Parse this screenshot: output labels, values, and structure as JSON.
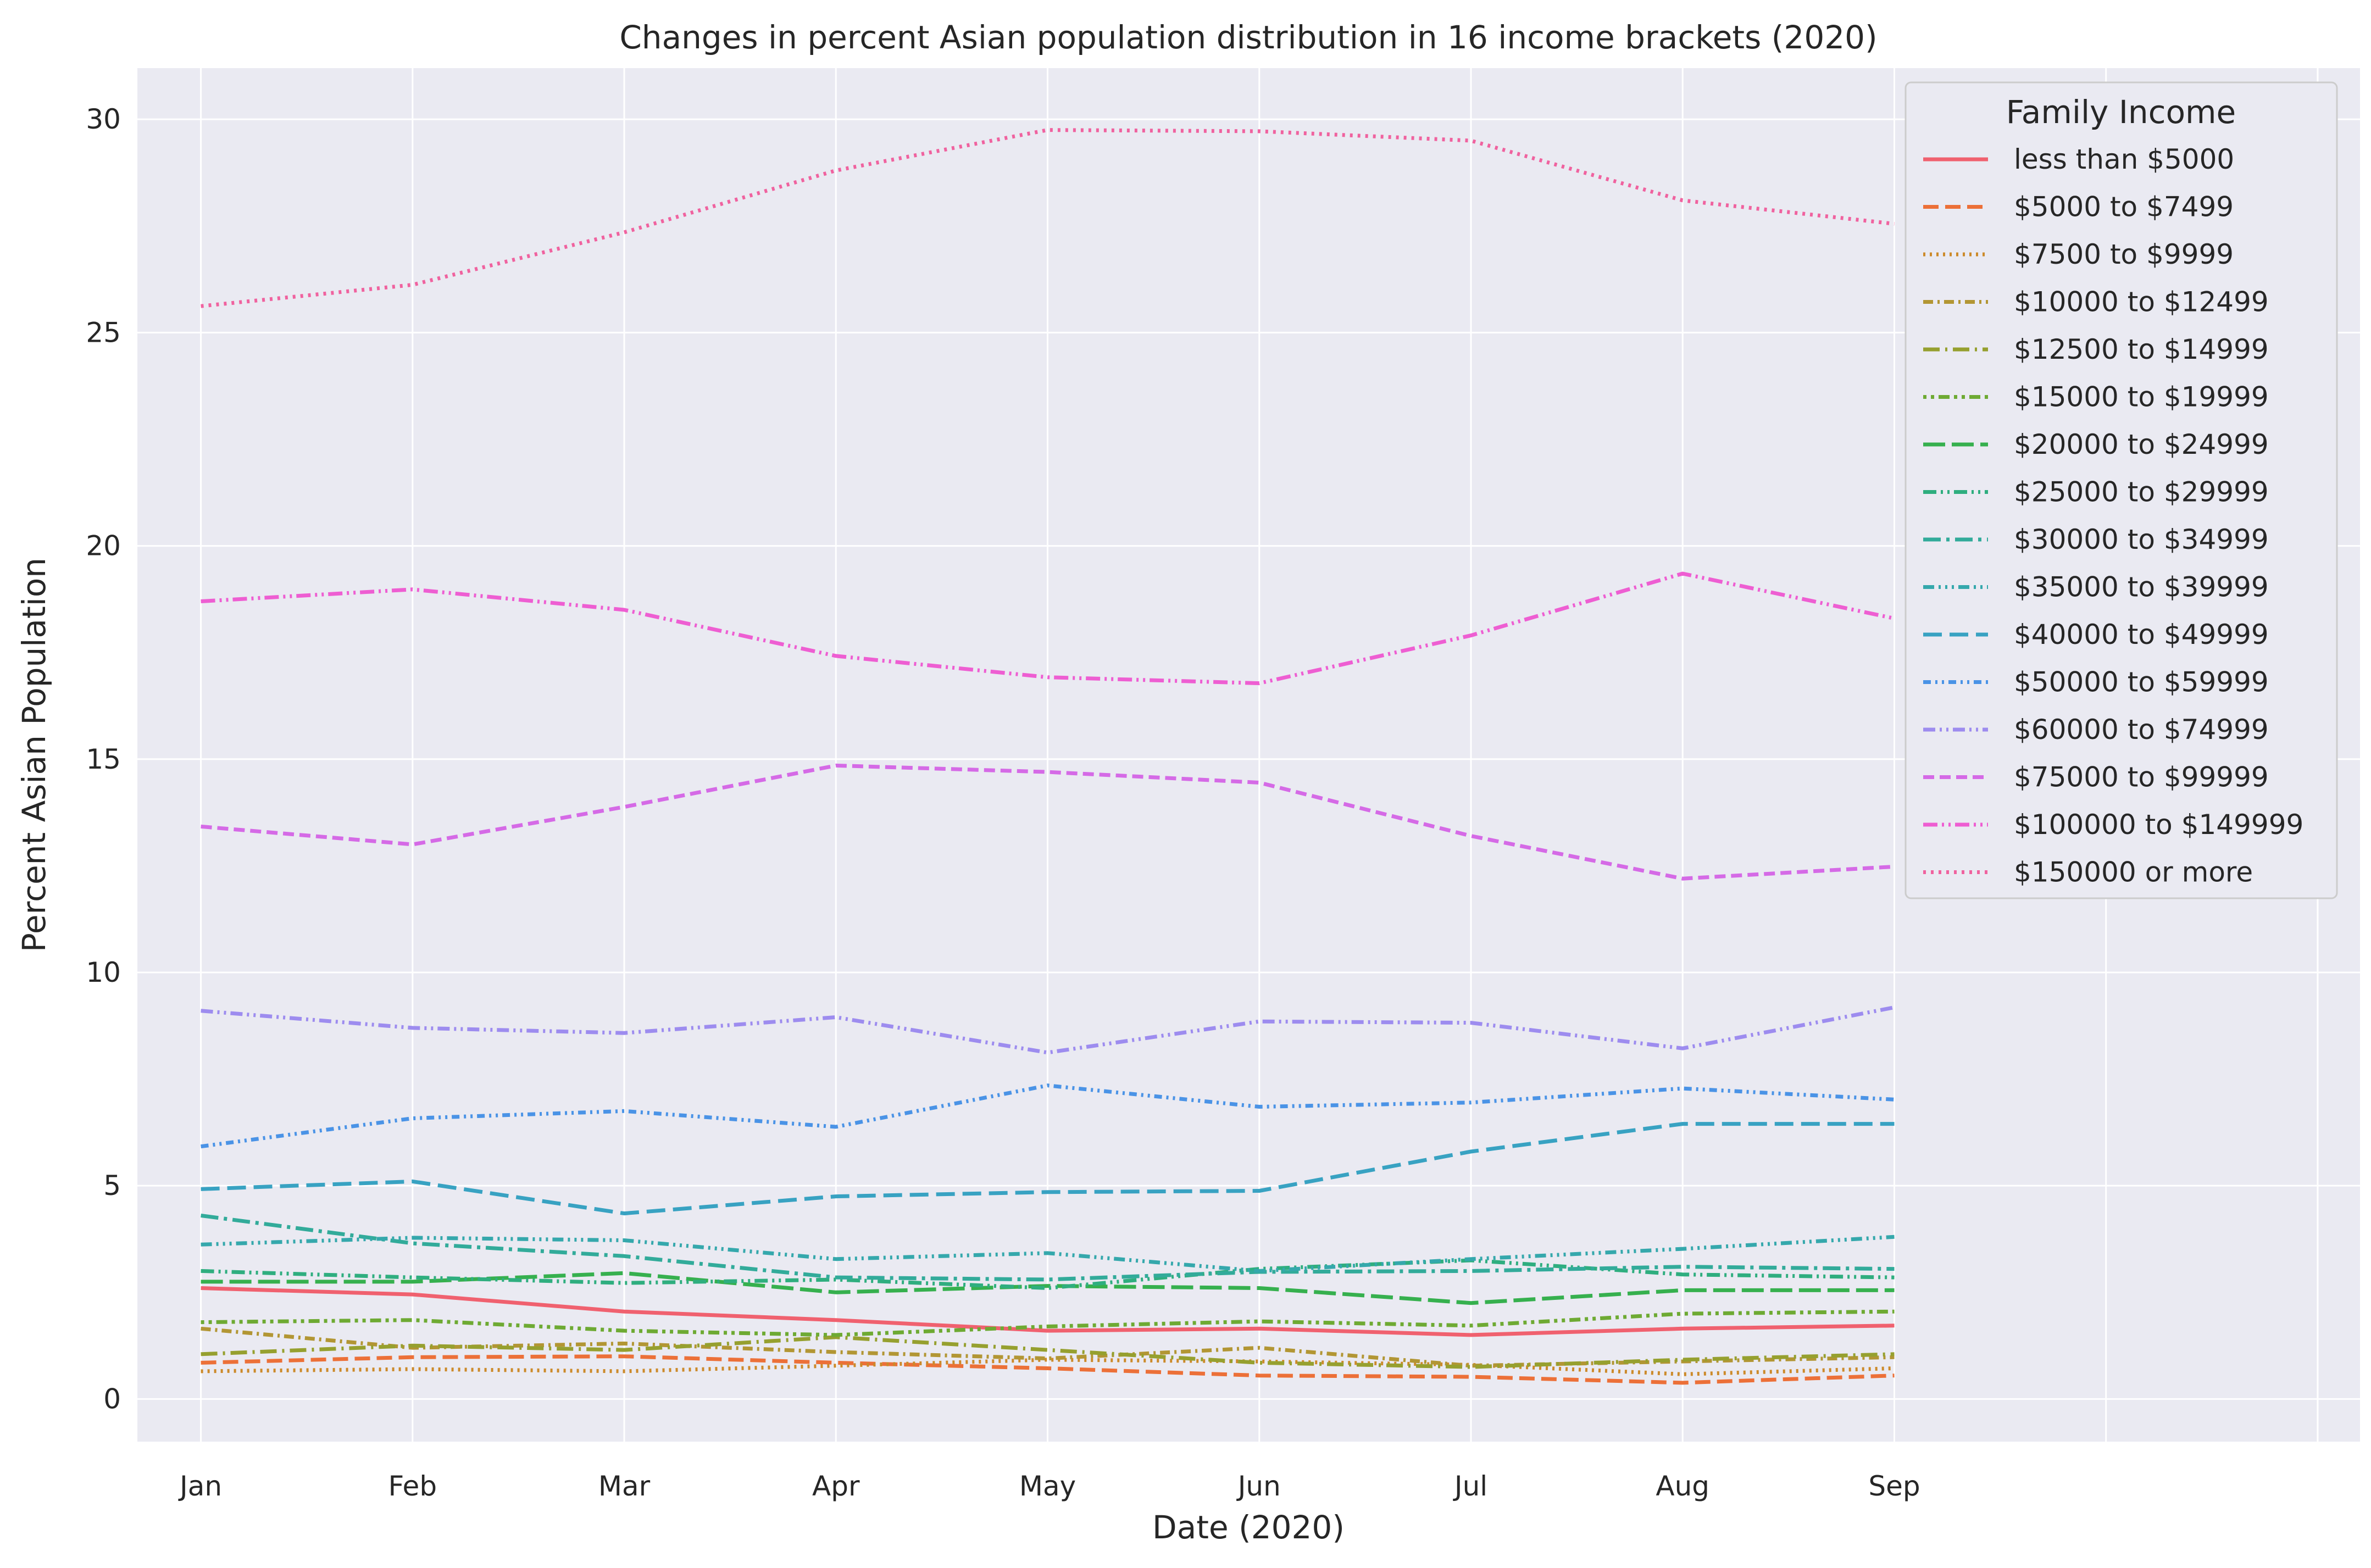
{
  "chart_data": {
    "type": "line",
    "title": "Changes in percent Asian population distribution in 16 income brackets (2020)",
    "xlabel": "Date (2020)",
    "ylabel": "Percent Asian Population",
    "categories": [
      "Jan",
      "Feb",
      "Mar",
      "Apr",
      "May",
      "Jun",
      "Jul",
      "Aug",
      "Sep"
    ],
    "xlim": [
      -0.3,
      10.2
    ],
    "ylim": [
      -1,
      31.2
    ],
    "yticks": [
      0,
      5,
      10,
      15,
      20,
      25,
      30
    ],
    "grid": true,
    "legend_title": "Family Income",
    "legend_position": "top-right",
    "series": [
      {
        "name": "less than $5000",
        "color": "#f0616f",
        "dash": "solid",
        "values": [
          2.6,
          2.45,
          2.05,
          1.85,
          1.6,
          1.65,
          1.5,
          1.65,
          1.72
        ]
      },
      {
        "name": "$5000 to $7499",
        "color": "#ec7038",
        "dash": "long",
        "values": [
          0.85,
          0.98,
          1.0,
          0.85,
          0.72,
          0.55,
          0.52,
          0.38,
          0.55
        ]
      },
      {
        "name": "$7500 to $9999",
        "color": "#cc8a2a",
        "dash": "dot",
        "values": [
          0.65,
          0.7,
          0.65,
          0.78,
          0.92,
          0.88,
          0.8,
          0.58,
          0.72
        ]
      },
      {
        "name": "$10000 to $12499",
        "color": "#b29634",
        "dash": "dashdot",
        "values": [
          1.65,
          1.2,
          1.3,
          1.1,
          0.95,
          1.2,
          0.78,
          0.88,
          0.98
        ]
      },
      {
        "name": "$12500 to $14999",
        "color": "#96a02f",
        "dash": "longdot",
        "values": [
          1.05,
          1.25,
          1.15,
          1.45,
          1.15,
          0.85,
          0.75,
          0.92,
          1.05
        ]
      },
      {
        "name": "$15000 to $19999",
        "color": "#6eaa33",
        "dash": "dotdot",
        "values": [
          1.8,
          1.85,
          1.6,
          1.5,
          1.7,
          1.82,
          1.72,
          2.0,
          2.05
        ]
      },
      {
        "name": "$20000 to $24999",
        "color": "#36b04e",
        "dash": "longdash",
        "values": [
          2.75,
          2.75,
          2.95,
          2.5,
          2.65,
          2.6,
          2.25,
          2.55,
          2.55
        ]
      },
      {
        "name": "$25000 to $29999",
        "color": "#2fae7f",
        "dash": "dashdotdot",
        "values": [
          3.0,
          2.85,
          2.72,
          2.8,
          2.6,
          3.05,
          3.25,
          2.92,
          2.85
        ]
      },
      {
        "name": "$30000 to $34999",
        "color": "#32ab9a",
        "dash": "longdashdot",
        "values": [
          4.3,
          3.65,
          3.35,
          2.85,
          2.8,
          2.98,
          3.0,
          3.1,
          3.05
        ]
      },
      {
        "name": "$35000 to $39999",
        "color": "#35a8ac",
        "dash": "dashdotdot2",
        "values": [
          3.62,
          3.78,
          3.72,
          3.28,
          3.42,
          3.0,
          3.28,
          3.52,
          3.8
        ]
      },
      {
        "name": "$40000 to $49999",
        "color": "#38a2c2",
        "dash": "longdash2",
        "values": [
          4.92,
          5.1,
          4.35,
          4.75,
          4.85,
          4.88,
          5.8,
          6.45,
          6.45
        ]
      },
      {
        "name": "$50000 to $59999",
        "color": "#4a93e6",
        "dash": "shortdotdot",
        "values": [
          5.92,
          6.58,
          6.75,
          6.38,
          7.35,
          6.85,
          6.95,
          7.28,
          7.02
        ]
      },
      {
        "name": "$60000 to $74999",
        "color": "#9d8cef",
        "dash": "dashdotdot3",
        "values": [
          9.1,
          8.7,
          8.58,
          8.95,
          8.12,
          8.85,
          8.82,
          8.22,
          9.18
        ]
      },
      {
        "name": "$75000 to $99999",
        "color": "#d56ae6",
        "dash": "dashed",
        "values": [
          13.42,
          13.0,
          13.88,
          14.85,
          14.7,
          14.45,
          13.2,
          12.2,
          12.48
        ]
      },
      {
        "name": "$100000 to $149999",
        "color": "#ee5ed2",
        "dash": "dashdotdot4",
        "values": [
          18.7,
          18.98,
          18.5,
          17.42,
          16.92,
          16.78,
          17.9,
          19.35,
          18.3
        ]
      },
      {
        "name": "$150000 or more",
        "color": "#f0629f",
        "dash": "dot2",
        "values": [
          25.62,
          26.12,
          27.35,
          28.8,
          29.75,
          29.72,
          29.5,
          28.1,
          27.55
        ]
      }
    ]
  }
}
